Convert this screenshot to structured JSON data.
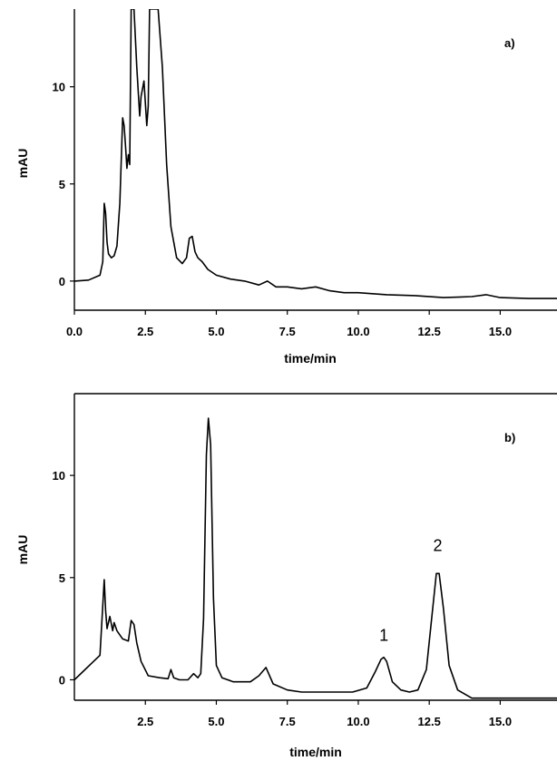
{
  "chart_data": [
    {
      "type": "line",
      "panel_label": "a)",
      "xlabel": "time/min",
      "ylabel": "mAU",
      "xlim": [
        0,
        17
      ],
      "ylim": [
        -1.5,
        14
      ],
      "x_ticks": [
        0,
        2.5,
        5,
        7.5,
        10,
        12.5,
        15
      ],
      "x_tick_labels": [
        "0.0",
        "2.5",
        "5.0",
        "7.5",
        "10.0",
        "12.5",
        "15.0"
      ],
      "y_ticks": [
        0,
        5,
        10
      ],
      "y_tick_labels": [
        "0",
        "5",
        "10"
      ],
      "grid": false,
      "annotations": [],
      "series": [
        {
          "x": [
            0.0,
            0.5,
            0.9,
            1.0,
            1.05,
            1.1,
            1.15,
            1.2,
            1.3,
            1.4,
            1.5,
            1.6,
            1.7,
            1.75,
            1.8,
            1.85,
            1.9,
            1.95,
            2.0,
            2.05,
            2.1,
            2.2,
            2.3,
            2.35,
            2.45,
            2.55,
            2.6,
            2.65,
            2.72,
            2.78,
            2.85,
            2.95,
            3.1,
            3.25,
            3.4,
            3.6,
            3.8,
            3.95,
            4.05,
            4.15,
            4.25,
            4.35,
            4.5,
            4.7,
            5.0,
            5.5,
            6.0,
            6.5,
            6.8,
            7.1,
            7.5,
            8.0,
            8.5,
            9.0,
            9.5,
            10.0,
            11.0,
            12.0,
            13.0,
            14.0,
            14.5,
            15.0,
            16.0,
            17.0
          ],
          "y": [
            0.0,
            0.05,
            0.3,
            1.0,
            4.0,
            3.5,
            2.0,
            1.4,
            1.2,
            1.3,
            1.8,
            4.0,
            8.4,
            8.0,
            7.0,
            5.8,
            6.5,
            6.0,
            14.0,
            14.0,
            14.0,
            11.0,
            8.5,
            9.5,
            10.3,
            8.0,
            9.0,
            14.0,
            14.0,
            14.0,
            14.0,
            14.0,
            11.0,
            6.0,
            2.8,
            1.2,
            0.9,
            1.2,
            2.2,
            2.3,
            1.5,
            1.2,
            1.0,
            0.6,
            0.3,
            0.1,
            0.0,
            -0.2,
            0.0,
            -0.3,
            -0.3,
            -0.4,
            -0.3,
            -0.5,
            -0.6,
            -0.6,
            -0.7,
            -0.75,
            -0.85,
            -0.8,
            -0.7,
            -0.85,
            -0.9,
            -0.9
          ]
        }
      ]
    },
    {
      "type": "line",
      "panel_label": "b)",
      "xlabel": "time/min",
      "ylabel": "mAU",
      "xlim": [
        0,
        17
      ],
      "ylim": [
        -1,
        14
      ],
      "x_ticks": [
        2.5,
        5,
        7.5,
        10,
        12.5,
        15
      ],
      "x_tick_labels": [
        "2.5",
        "5.0",
        "7.5",
        "10.0",
        "12.5",
        "15.0"
      ],
      "y_ticks": [
        0,
        5,
        10
      ],
      "y_tick_labels": [
        "0",
        "5",
        "10"
      ],
      "grid": false,
      "annotations": [
        {
          "text": "1",
          "x": 10.9,
          "y": 1.9
        },
        {
          "text": "2",
          "x": 12.8,
          "y": 6.3
        }
      ],
      "series": [
        {
          "x": [
            0.0,
            0.3,
            0.6,
            0.9,
            1.05,
            1.1,
            1.15,
            1.25,
            1.35,
            1.4,
            1.5,
            1.7,
            1.9,
            2.0,
            2.1,
            2.2,
            2.35,
            2.6,
            3.0,
            3.3,
            3.4,
            3.5,
            3.7,
            4.0,
            4.2,
            4.35,
            4.45,
            4.55,
            4.65,
            4.72,
            4.8,
            4.9,
            5.0,
            5.2,
            5.6,
            6.2,
            6.5,
            6.75,
            7.0,
            7.5,
            8.0,
            9.0,
            9.8,
            10.3,
            10.6,
            10.8,
            10.9,
            11.0,
            11.2,
            11.5,
            11.8,
            12.1,
            12.4,
            12.6,
            12.75,
            12.85,
            13.0,
            13.2,
            13.5,
            14.0,
            15.0,
            16.0,
            17.0
          ],
          "y": [
            0.0,
            0.4,
            0.8,
            1.2,
            4.9,
            3.4,
            2.5,
            3.1,
            2.4,
            2.8,
            2.4,
            2.0,
            1.9,
            2.9,
            2.7,
            1.8,
            0.9,
            0.2,
            0.1,
            0.05,
            0.5,
            0.1,
            0.0,
            0.0,
            0.3,
            0.1,
            0.3,
            3.0,
            11.0,
            12.8,
            11.5,
            4.0,
            0.7,
            0.1,
            -0.1,
            -0.1,
            0.2,
            0.6,
            -0.2,
            -0.5,
            -0.6,
            -0.6,
            -0.6,
            -0.4,
            0.4,
            1.0,
            1.1,
            0.9,
            -0.1,
            -0.5,
            -0.6,
            -0.5,
            0.5,
            3.2,
            5.2,
            5.2,
            3.5,
            0.7,
            -0.5,
            -0.9,
            -0.9,
            -0.9,
            -0.9
          ]
        }
      ]
    }
  ]
}
